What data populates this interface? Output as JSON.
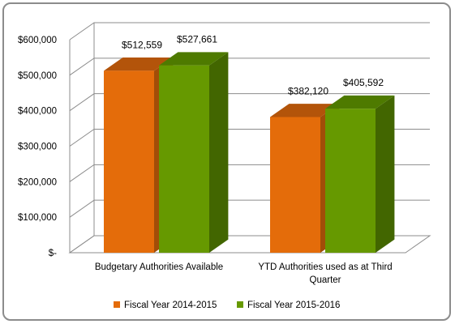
{
  "chart_data": {
    "type": "bar",
    "categories": [
      "Budgetary Authorities Available",
      "YTD Authorities used as at Third Quarter"
    ],
    "series": [
      {
        "name": "Fiscal Year 2014-2015",
        "values": [
          512559,
          382120
        ],
        "labels": [
          "$512,559",
          "$382,120"
        ],
        "color": "#e46c0a"
      },
      {
        "name": "Fiscal Year 2015-2016",
        "values": [
          527661,
          405592
        ],
        "labels": [
          "$527,661",
          "$405,592"
        ],
        "color": "#669900"
      }
    ],
    "yticks": [
      "$-",
      "$100,000",
      "$200,000",
      "$300,000",
      "$400,000",
      "$500,000",
      "$600,000"
    ],
    "ylim": [
      0,
      600000
    ],
    "grid": true,
    "legend_position": "bottom"
  },
  "colors": {
    "series1_top": "#b3540a",
    "series1_side": "#a24d08",
    "series2_top": "#4e7a00",
    "series2_side": "#426600",
    "gridline": "#8c8c8c",
    "wall": "#f2f2f2",
    "floor": "#d9d9d9"
  }
}
